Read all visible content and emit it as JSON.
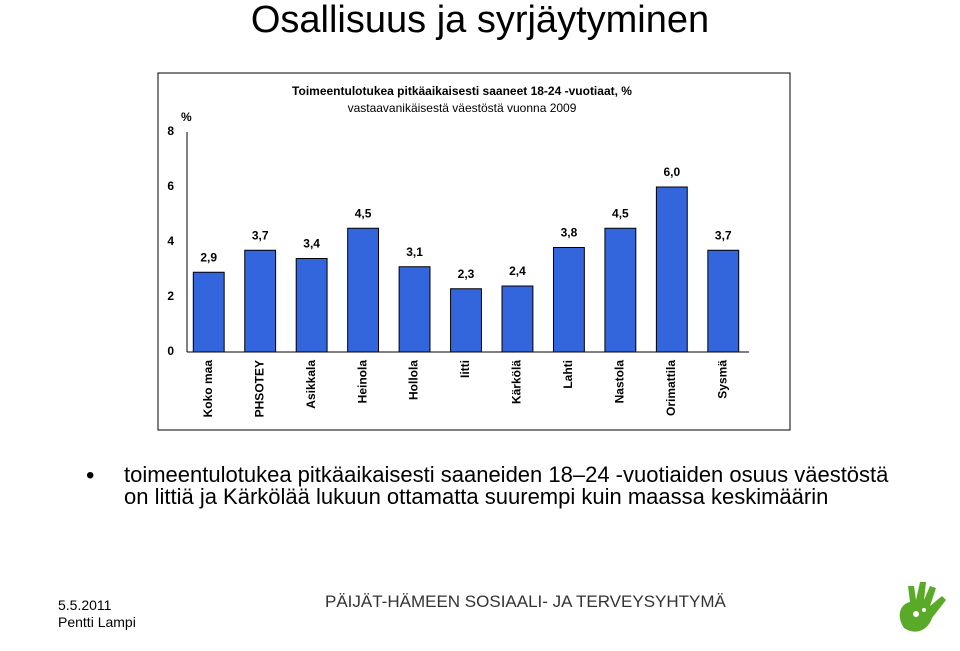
{
  "slide_title": "Osallisuus ja syrjäytyminen",
  "chart_data": {
    "type": "bar",
    "title": [
      "Toimeentulotukea pitkäaikaisesti saaneet 18-24 -vuotiaat, %",
      "vastaavanikäisestä väestöstä vuonna 2009"
    ],
    "y_label": "%",
    "categories": [
      "Koko maa",
      "PHSOTEY",
      "Asikkala",
      "Heinola",
      "Hollola",
      "Iitti",
      "Kärkölä",
      "Lahti",
      "Nastola",
      "Orimattila",
      "Sysmä"
    ],
    "values": [
      2.9,
      3.7,
      3.4,
      4.5,
      3.1,
      2.3,
      2.4,
      3.8,
      4.5,
      6.0,
      3.7
    ],
    "value_labels": [
      "2,9",
      "3,7",
      "3,4",
      "4,5",
      "3,1",
      "2,3",
      "2,4",
      "3,8",
      "4,5",
      "6,0",
      "3,7"
    ],
    "color": "#3366dd",
    "ylim": [
      0,
      8
    ],
    "yticks": [
      0,
      2,
      4,
      6,
      8
    ],
    "grid": false
  },
  "bullet": "toimeentulotukea pitkäaikaisesti saaneiden 18–24 -vuotiaiden osuus väestöstä on littiä ja Kärkölää lukuun ottamatta suurempi kuin maassa keskimäärin",
  "footer": {
    "date": "5.5.2011",
    "author": "Pentti Lampi",
    "organization": "PÄIJÄT-HÄMEEN SOSIAALI- JA TERVEYSYHTYMÄ"
  }
}
